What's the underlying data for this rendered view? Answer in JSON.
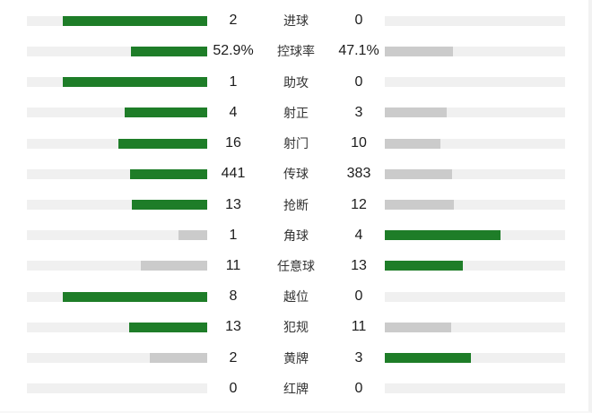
{
  "colors": {
    "win_bar": "#1e7d28",
    "lose_bar": "#cbcbcb",
    "track": "#f0f0f0"
  },
  "chart_data": {
    "type": "bar",
    "layout": "mirrored-horizontal-comparison",
    "bar_scale_note": "fill fraction = 0.8 * value / (left+right)",
    "rows": [
      {
        "label": "进球",
        "left_text": "2",
        "right_text": "0",
        "left_val": 2,
        "right_val": 0
      },
      {
        "label": "控球率",
        "left_text": "52.9%",
        "right_text": "47.1%",
        "left_val": 52.9,
        "right_val": 47.1
      },
      {
        "label": "助攻",
        "left_text": "1",
        "right_text": "0",
        "left_val": 1,
        "right_val": 0
      },
      {
        "label": "射正",
        "left_text": "4",
        "right_text": "3",
        "left_val": 4,
        "right_val": 3
      },
      {
        "label": "射门",
        "left_text": "16",
        "right_text": "10",
        "left_val": 16,
        "right_val": 10
      },
      {
        "label": "传球",
        "left_text": "441",
        "right_text": "383",
        "left_val": 441,
        "right_val": 383
      },
      {
        "label": "抢断",
        "left_text": "13",
        "right_text": "12",
        "left_val": 13,
        "right_val": 12
      },
      {
        "label": "角球",
        "left_text": "1",
        "right_text": "4",
        "left_val": 1,
        "right_val": 4
      },
      {
        "label": "任意球",
        "left_text": "11",
        "right_text": "13",
        "left_val": 11,
        "right_val": 13
      },
      {
        "label": "越位",
        "left_text": "8",
        "right_text": "0",
        "left_val": 8,
        "right_val": 0
      },
      {
        "label": "犯规",
        "left_text": "13",
        "right_text": "11",
        "left_val": 13,
        "right_val": 11
      },
      {
        "label": "黄牌",
        "left_text": "2",
        "right_text": "3",
        "left_val": 2,
        "right_val": 3
      },
      {
        "label": "红牌",
        "left_text": "0",
        "right_text": "0",
        "left_val": 0,
        "right_val": 0
      }
    ]
  }
}
